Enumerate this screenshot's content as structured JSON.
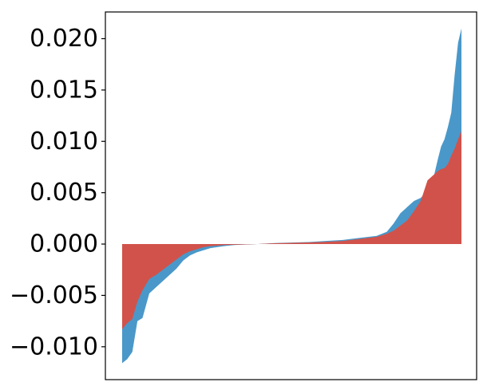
{
  "chart_data": {
    "type": "area",
    "title": "",
    "xlabel": "",
    "ylabel": "",
    "ylim": [
      -0.0132,
      0.0226
    ],
    "xlim": [
      0,
      100
    ],
    "grid": false,
    "legend": "none",
    "y_ticks": [
      {
        "value": -0.01,
        "label": "−0.010"
      },
      {
        "value": -0.005,
        "label": "−0.005"
      },
      {
        "value": 0.0,
        "label": "0.000"
      },
      {
        "value": 0.005,
        "label": "0.005"
      },
      {
        "value": 0.01,
        "label": "0.010"
      },
      {
        "value": 0.015,
        "label": "0.015"
      },
      {
        "value": 0.02,
        "label": "0.020"
      }
    ],
    "x": [
      0,
      1.5,
      3,
      4.5,
      6,
      8,
      10,
      12,
      14,
      16,
      18,
      20,
      22,
      24,
      26,
      28,
      30,
      33,
      36,
      40,
      45,
      50,
      55,
      60,
      65,
      70,
      75,
      78,
      80,
      82,
      84,
      86,
      88,
      90,
      92,
      93,
      94,
      95,
      96,
      97,
      98,
      99,
      100
    ],
    "series": [
      {
        "color": "#4a98c9",
        "values": [
          -0.0116,
          -0.0112,
          -0.0105,
          -0.0075,
          -0.0072,
          -0.0048,
          -0.0042,
          -0.0036,
          -0.003,
          -0.0024,
          -0.0016,
          -0.0011,
          -0.0008,
          -0.0006,
          -0.0004,
          -0.0003,
          -0.0002,
          -0.0001,
          -5e-05,
          0,
          0.0001,
          0.00015,
          0.0002,
          0.0003,
          0.0004,
          0.0006,
          0.0008,
          0.0012,
          0.002,
          0.003,
          0.0036,
          0.0042,
          0.0045,
          0.0052,
          0.0068,
          0.0082,
          0.0095,
          0.0102,
          0.0114,
          0.0128,
          0.0165,
          0.0196,
          0.021
        ]
      },
      {
        "color": "#d1524a",
        "values": [
          -0.0083,
          -0.0077,
          -0.0073,
          -0.0056,
          -0.0045,
          -0.0034,
          -0.003,
          -0.0025,
          -0.002,
          -0.0015,
          -0.001,
          -0.0007,
          -0.0005,
          -0.0003,
          -0.0002,
          -0.00015,
          -0.0001,
          -7e-05,
          -4e-05,
          0,
          8e-05,
          0.00012,
          0.00016,
          0.00022,
          0.0003,
          0.0005,
          0.0007,
          0.001,
          0.0013,
          0.0018,
          0.0023,
          0.0032,
          0.0042,
          0.0062,
          0.0068,
          0.0071,
          0.0073,
          0.0074,
          0.0078,
          0.0086,
          0.0093,
          0.0102,
          0.011
        ]
      }
    ]
  }
}
